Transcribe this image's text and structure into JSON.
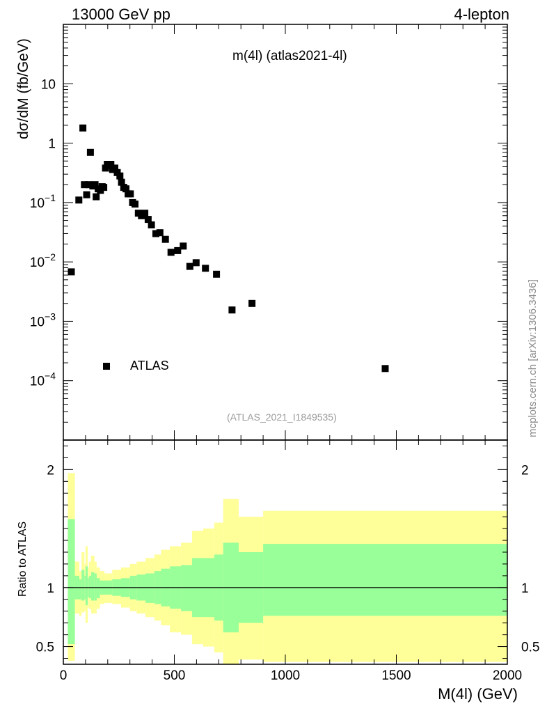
{
  "header": {
    "left": "13000 GeV pp",
    "right": "4-lepton"
  },
  "subtitle": "m(4l) (atlas2021-4l)",
  "analysis_id": "(ATLAS_2021_I1849535)",
  "side_credit": "mcplots.cern.ch [arXiv:1306.3436]",
  "legend": {
    "marker": "square",
    "label": "ATLAS"
  },
  "colors": {
    "marker": "#000000",
    "band_outer": "#ffff99",
    "band_inner": "#99ff99",
    "ratio_line": "#000000"
  },
  "chart_data": [
    {
      "type": "scatter",
      "ylabel": "dσ/dM (fb/GeV)",
      "xlim": [
        0,
        2000
      ],
      "ylim": [
        1e-05,
        100
      ],
      "y_scale": "log",
      "y_ticks": [
        {
          "value": 0.0001,
          "base": "10",
          "exp": "−4"
        },
        {
          "value": 0.001,
          "base": "10",
          "exp": "−3"
        },
        {
          "value": 0.01,
          "base": "10",
          "exp": "−2"
        },
        {
          "value": 0.1,
          "base": "10",
          "exp": "−1"
        },
        {
          "value": 1,
          "base": "1",
          "exp": ""
        },
        {
          "value": 10,
          "base": "10",
          "exp": ""
        }
      ],
      "series": [
        {
          "name": "ATLAS",
          "points": [
            [
              36,
              0.0068
            ],
            [
              70,
              0.11
            ],
            [
              88,
              1.8
            ],
            [
              95,
              0.2
            ],
            [
              105,
              0.135
            ],
            [
              115,
              0.2
            ],
            [
              122,
              0.7
            ],
            [
              133,
              0.19
            ],
            [
              143,
              0.2
            ],
            [
              148,
              0.125
            ],
            [
              157,
              0.17
            ],
            [
              167,
              0.16
            ],
            [
              175,
              0.185
            ],
            [
              182,
              0.18
            ],
            [
              190,
              0.38
            ],
            [
              198,
              0.44
            ],
            [
              206,
              0.42
            ],
            [
              214,
              0.44
            ],
            [
              222,
              0.36
            ],
            [
              232,
              0.38
            ],
            [
              243,
              0.32
            ],
            [
              255,
              0.28
            ],
            [
              262,
              0.22
            ],
            [
              272,
              0.18
            ],
            [
              282,
              0.17
            ],
            [
              292,
              0.14
            ],
            [
              302,
              0.14
            ],
            [
              312,
              0.1
            ],
            [
              323,
              0.094
            ],
            [
              338,
              0.066
            ],
            [
              352,
              0.06
            ],
            [
              367,
              0.066
            ],
            [
              382,
              0.052
            ],
            [
              397,
              0.042
            ],
            [
              417,
              0.03
            ],
            [
              435,
              0.031
            ],
            [
              460,
              0.024
            ],
            [
              485,
              0.0145
            ],
            [
              515,
              0.0155
            ],
            [
              540,
              0.0185
            ],
            [
              570,
              0.0084
            ],
            [
              598,
              0.0097
            ],
            [
              640,
              0.0078
            ],
            [
              690,
              0.0062
            ],
            [
              760,
              0.00155
            ],
            [
              850,
              0.002
            ],
            [
              1450,
              0.00016
            ]
          ]
        }
      ]
    },
    {
      "type": "area",
      "ylabel": "Ratio to ATLAS",
      "xlabel": "M(4l) (GeV)",
      "xlim": [
        0,
        2000
      ],
      "ylim": [
        0.35,
        2.25
      ],
      "x_ticks": [
        0,
        500,
        1000,
        1500,
        2000
      ],
      "y_ticks": [
        "0.5",
        "1",
        "2"
      ],
      "y_tick_values": [
        0.5,
        1,
        2
      ],
      "reference": 1,
      "bands": [
        [
          20,
          52,
          1.97,
          0.38,
          1.58,
          0.52
        ],
        [
          52,
          72,
          1.22,
          0.78,
          1.1,
          0.9
        ],
        [
          72,
          82,
          1.14,
          0.76,
          1.07,
          0.9
        ],
        [
          82,
          95,
          1.3,
          0.79,
          1.15,
          0.89
        ],
        [
          95,
          100,
          1.2,
          0.8,
          1.1,
          0.9
        ],
        [
          100,
          110,
          1.35,
          0.7,
          1.18,
          0.85
        ],
        [
          110,
          115,
          1.17,
          0.83,
          1.08,
          0.92
        ],
        [
          115,
          125,
          1.22,
          0.82,
          1.1,
          0.91
        ],
        [
          125,
          140,
          1.27,
          0.78,
          1.13,
          0.89
        ],
        [
          140,
          150,
          1.22,
          0.78,
          1.12,
          0.89
        ],
        [
          150,
          165,
          1.17,
          0.82,
          1.08,
          0.91
        ],
        [
          165,
          185,
          1.14,
          0.86,
          1.06,
          0.94
        ],
        [
          185,
          220,
          1.12,
          0.87,
          1.06,
          0.94
        ],
        [
          220,
          260,
          1.15,
          0.86,
          1.07,
          0.93
        ],
        [
          260,
          300,
          1.17,
          0.83,
          1.08,
          0.92
        ],
        [
          300,
          330,
          1.2,
          0.8,
          1.1,
          0.9
        ],
        [
          330,
          370,
          1.22,
          0.78,
          1.11,
          0.89
        ],
        [
          370,
          410,
          1.25,
          0.75,
          1.12,
          0.87
        ],
        [
          410,
          440,
          1.28,
          0.72,
          1.14,
          0.86
        ],
        [
          440,
          480,
          1.32,
          0.68,
          1.16,
          0.84
        ],
        [
          480,
          530,
          1.35,
          0.62,
          1.18,
          0.82
        ],
        [
          530,
          580,
          1.38,
          0.6,
          1.19,
          0.8
        ],
        [
          580,
          630,
          1.48,
          0.52,
          1.25,
          0.75
        ],
        [
          630,
          680,
          1.5,
          0.5,
          1.25,
          0.75
        ],
        [
          680,
          720,
          1.55,
          0.45,
          1.28,
          0.72
        ],
        [
          720,
          790,
          1.75,
          0.3,
          1.38,
          0.62
        ],
        [
          790,
          900,
          1.6,
          0.39,
          1.3,
          0.7
        ],
        [
          900,
          2000,
          1.65,
          0.37,
          1.37,
          0.76
        ]
      ],
      "band_columns": [
        "x_low",
        "x_high",
        "outer_high",
        "outer_low",
        "inner_high",
        "inner_low"
      ]
    }
  ]
}
